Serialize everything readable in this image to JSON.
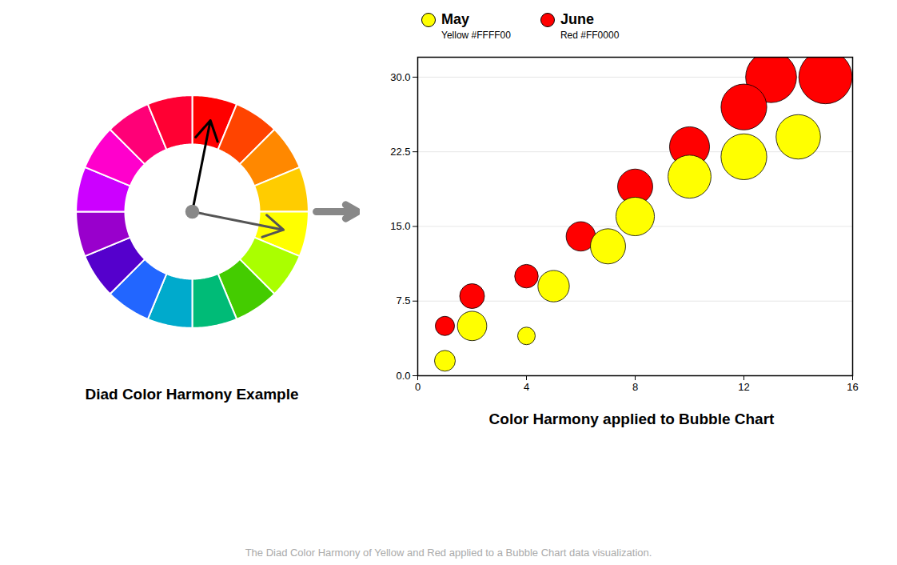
{
  "chart_data": [
    {
      "type": "donut",
      "title": "Diad Color Harmony Example",
      "colors": [
        "#FF0000",
        "#FF4400",
        "#FF8800",
        "#FFCC00",
        "#FFFF00",
        "#AAFF00",
        "#44CC00",
        "#00BB77",
        "#00AACC",
        "#2266FF",
        "#5500CC",
        "#9900CC",
        "#CC00FF",
        "#FF00CC",
        "#FF0077",
        "#FF0033"
      ]
    },
    {
      "type": "scatter",
      "title": "Color Harmony applied to Bubble Chart",
      "caption": "The Diad Color Harmony of Yellow and Red applied to a Bubble Chart data visualization.",
      "annotations": [
        "Yellow #FFFF00",
        "Red #FF0000"
      ],
      "xlim": [
        0,
        16
      ],
      "ylim": [
        0,
        32
      ],
      "xticks": [
        0,
        4,
        8,
        12,
        16
      ],
      "yticks": [
        {
          "value": 0,
          "label": "0.0"
        },
        {
          "value": 7.5,
          "label": "7.5"
        },
        {
          "value": 15,
          "label": "15.0"
        },
        {
          "value": 22.5,
          "label": "22.5"
        },
        {
          "value": 30,
          "label": "30.0"
        }
      ],
      "grid": "y",
      "legend": "top-left",
      "edge_color": "#000000",
      "series": [
        {
          "name": "May",
          "color": "#FFFF00",
          "x": [
            1,
            2,
            4,
            5,
            7,
            8,
            10,
            12,
            14
          ],
          "values": [
            1.5,
            5,
            4,
            9,
            13,
            16,
            20,
            22,
            24
          ],
          "sizes": [
            350,
            700,
            250,
            800,
            1000,
            1200,
            1500,
            1700,
            1600
          ]
        },
        {
          "name": "June",
          "color": "#FF0000",
          "x": [
            1,
            2,
            4,
            6,
            8,
            10,
            12,
            13,
            15
          ],
          "values": [
            5,
            8,
            10,
            14,
            19,
            23,
            27,
            30,
            30
          ],
          "sizes": [
            300,
            500,
            450,
            700,
            1000,
            1300,
            1700,
            2100,
            2300
          ]
        }
      ]
    }
  ]
}
